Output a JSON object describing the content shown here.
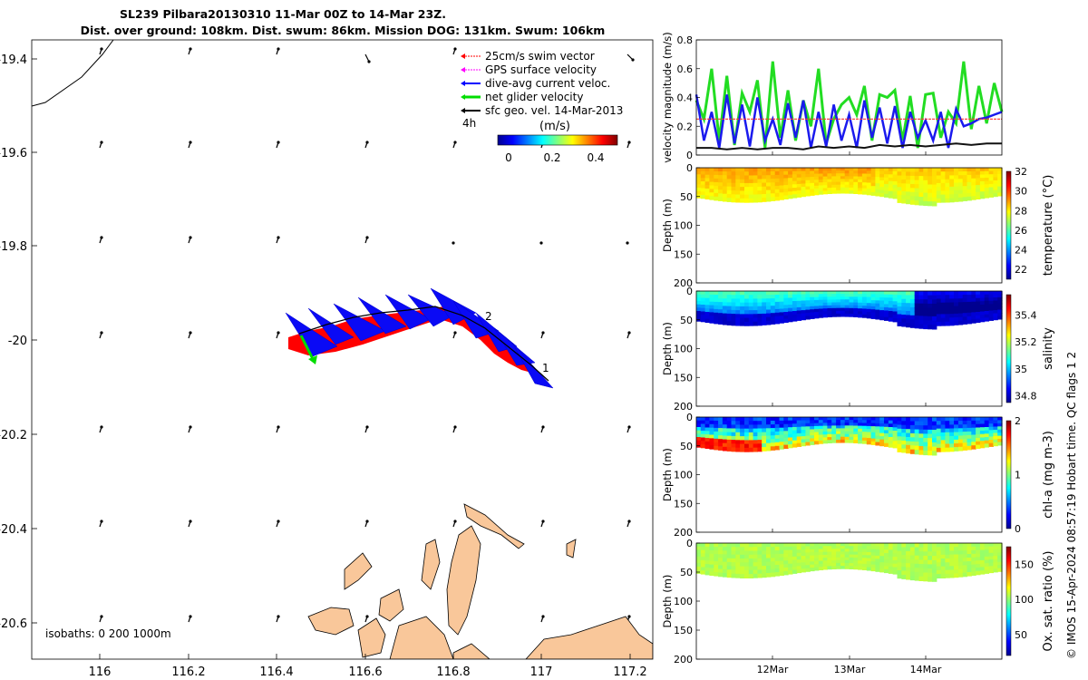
{
  "title_line1": "SL239 Pilbara20130310 11-Mar 00Z to 14-Mar 23Z.",
  "title_line2": "Dist. over ground: 108km. Dist. swum: 86km. Mission DOG: 131km. Swum: 106km",
  "legend": {
    "items": [
      {
        "label": "25cm/s swim vector",
        "color": "#ff0000"
      },
      {
        "label": "GPS surface velocity",
        "color": "#ff00ff"
      },
      {
        "label": "dive-avg current veloc.",
        "color": "#0000ff"
      },
      {
        "label": "net glider velocity",
        "color": "#00dd00"
      },
      {
        "label": "sfc geo. vel. 14-Mar-2013",
        "color": "#000000"
      }
    ],
    "time_label": "4h",
    "colorbar_title": "(m/s)",
    "colorbar_ticks": [
      "0",
      "0.2",
      "0.4"
    ]
  },
  "map": {
    "x_ticks": [
      "116",
      "116.2",
      "116.4",
      "116.6",
      "116.8",
      "117",
      "117.2"
    ],
    "y_ticks": [
      "-19.4",
      "-19.6",
      "-19.8",
      "-20",
      "-20.2",
      "-20.4",
      "-20.6"
    ],
    "isobath_label": "isobaths: 0   200  1000m",
    "point_labels": [
      "1",
      "2"
    ],
    "land_color": "#f9c79a"
  },
  "chart_data": [
    {
      "type": "line",
      "ylabel": "velocity magnitude (m/s)",
      "ylim": [
        0,
        0.8
      ],
      "y_ticks": [
        "0",
        "0.2",
        "0.4",
        "0.6",
        "0.8"
      ],
      "series": [
        {
          "color": "#22dd22",
          "values": [
            0.38,
            0.25,
            0.6,
            0.1,
            0.55,
            0.07,
            0.43,
            0.3,
            0.52,
            0.05,
            0.65,
            0.12,
            0.45,
            0.1,
            0.38,
            0.2,
            0.6,
            0.08,
            0.25,
            0.35,
            0.4,
            0.28,
            0.48,
            0.1,
            0.42,
            0.4,
            0.45,
            0.1,
            0.41,
            0.05,
            0.42,
            0.43,
            0.12,
            0.3,
            0.22,
            0.65,
            0.18,
            0.48,
            0.22,
            0.5,
            0.3
          ]
        },
        {
          "color": "#1a1aee",
          "values": [
            0.42,
            0.1,
            0.3,
            0.05,
            0.42,
            0.08,
            0.35,
            0.06,
            0.4,
            0.1,
            0.25,
            0.07,
            0.36,
            0.12,
            0.38,
            0.05,
            0.3,
            0.06,
            0.35,
            0.1,
            0.28,
            0.05,
            0.38,
            0.12,
            0.33,
            0.08,
            0.34,
            0.05,
            0.3,
            0.12,
            0.24,
            0.1,
            0.3,
            0.05,
            0.32,
            0.2,
            0.22,
            0.25,
            0.26,
            0.28,
            0.3
          ]
        },
        {
          "color": "#ff3333",
          "values": [
            0.25,
            0.25,
            0.25,
            0.25,
            0.25,
            0.25,
            0.25,
            0.25,
            0.25,
            0.25,
            0.25,
            0.25,
            0.25,
            0.25,
            0.25,
            0.25,
            0.25,
            0.25,
            0.25,
            0.25,
            0.25
          ]
        },
        {
          "color": "#111111",
          "values": [
            0.05,
            0.05,
            0.04,
            0.05,
            0.04,
            0.05,
            0.05,
            0.04,
            0.06,
            0.05,
            0.06,
            0.05,
            0.07,
            0.06,
            0.07,
            0.06,
            0.07,
            0.08,
            0.07,
            0.08,
            0.08
          ]
        }
      ]
    },
    {
      "type": "heatmap",
      "ylabel": "Depth (m)",
      "clabel": "temperature (°C)",
      "ylim": [
        0,
        200
      ],
      "y_ticks": [
        "0",
        "50",
        "100",
        "150",
        "200"
      ],
      "c_ticks": [
        "22",
        "24",
        "26",
        "28",
        "30",
        "32"
      ],
      "crange": [
        21,
        32
      ]
    },
    {
      "type": "heatmap",
      "ylabel": "Depth (m)",
      "clabel": "salinity",
      "ylim": [
        0,
        200
      ],
      "y_ticks": [
        "0",
        "50",
        "100",
        "150",
        "200"
      ],
      "c_ticks": [
        "34.8",
        "35",
        "35.2",
        "35.4"
      ],
      "crange": [
        34.75,
        35.55
      ]
    },
    {
      "type": "heatmap",
      "ylabel": "Depth (m)",
      "clabel": "chl-a (mg m-3)",
      "ylim": [
        0,
        200
      ],
      "y_ticks": [
        "0",
        "50",
        "100",
        "150",
        "200"
      ],
      "c_ticks": [
        "0",
        "1",
        "2"
      ],
      "crange": [
        0,
        2
      ]
    },
    {
      "type": "heatmap",
      "ylabel": "Depth (m)",
      "clabel": "Ox. sat. ratio (%)",
      "ylim": [
        0,
        200
      ],
      "y_ticks": [
        "0",
        "50",
        "100",
        "150",
        "200"
      ],
      "c_ticks": [
        "50",
        "100",
        "150"
      ],
      "crange": [
        20,
        175
      ]
    }
  ],
  "time_ticks": [
    "12Mar",
    "13Mar",
    "14Mar"
  ],
  "side_label": "© IMOS 15-Apr-2024 08:57:19 Hobart time. QC flags 1  2"
}
